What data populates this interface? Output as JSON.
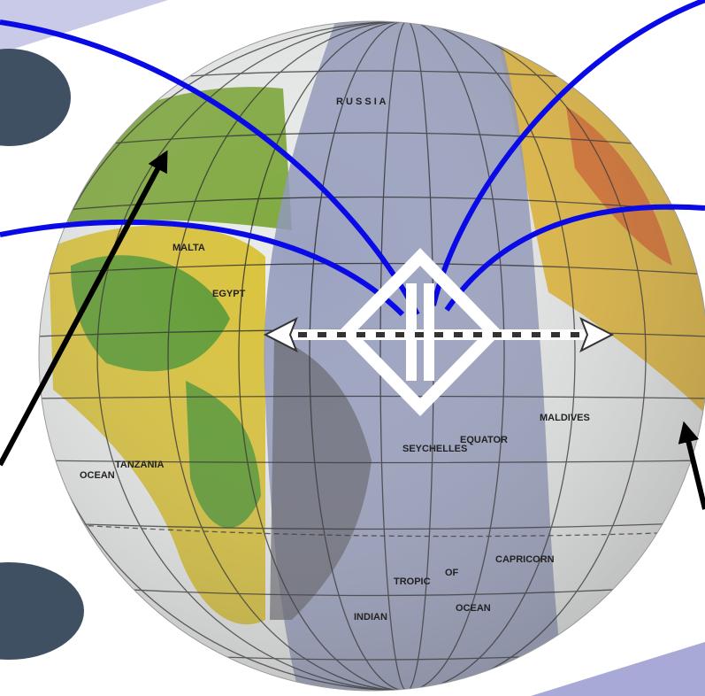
{
  "map_labels": [
    "R U S S I A",
    "EGYPT",
    "MALTA",
    "EQUATOR",
    "SEYCHELLES",
    "MALDIVES",
    "TANZANIA",
    "OCEAN",
    "TROPIC",
    "OF",
    "CAPRICORN",
    "INDIAN",
    "OCEAN"
  ]
}
